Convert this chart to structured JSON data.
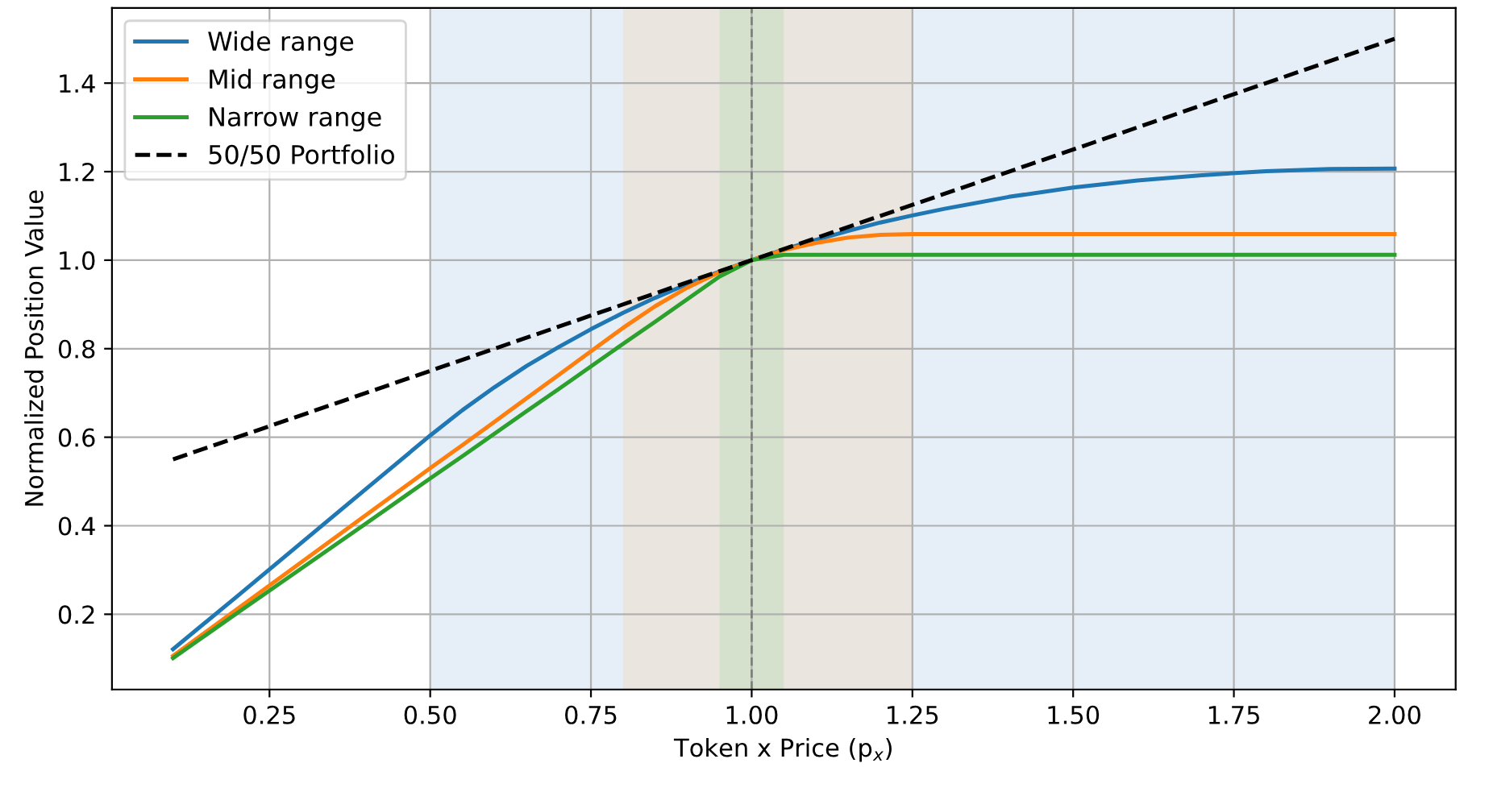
{
  "chart_data": {
    "type": "line",
    "xlabel": "Token x Price (p$_{x}$)",
    "ylabel": "Normalized Position Value",
    "x": [
      0.1,
      0.2,
      0.3,
      0.4,
      0.5,
      0.55,
      0.6,
      0.65,
      0.7,
      0.75,
      0.8,
      0.85,
      0.9,
      0.95,
      1.0,
      1.05,
      1.1,
      1.15,
      1.2,
      1.25,
      1.3,
      1.4,
      1.5,
      1.6,
      1.7,
      1.8,
      1.9,
      2.0
    ],
    "series": [
      {
        "name": "Wide range",
        "color": "#1f77b4",
        "values": [
          0.121,
          0.241,
          0.362,
          0.483,
          0.604,
          0.661,
          0.713,
          0.761,
          0.804,
          0.844,
          0.881,
          0.915,
          0.946,
          0.974,
          1.0,
          1.024,
          1.046,
          1.066,
          1.085,
          1.101,
          1.116,
          1.143,
          1.164,
          1.18,
          1.192,
          1.201,
          1.206,
          1.207
        ]
      },
      {
        "name": "Mid range",
        "color": "#ff7f0e",
        "values": [
          0.106,
          0.212,
          0.318,
          0.424,
          0.53,
          0.582,
          0.635,
          0.688,
          0.741,
          0.794,
          0.847,
          0.896,
          0.938,
          0.973,
          1.0,
          1.023,
          1.039,
          1.051,
          1.057,
          1.059,
          1.059,
          1.059,
          1.059,
          1.059,
          1.059,
          1.059,
          1.059,
          1.059
        ]
      },
      {
        "name": "Narrow range",
        "color": "#2ca02c",
        "values": [
          0.101,
          0.203,
          0.304,
          0.405,
          0.507,
          0.557,
          0.608,
          0.659,
          0.709,
          0.76,
          0.811,
          0.861,
          0.912,
          0.963,
          1.0,
          1.012,
          1.012,
          1.012,
          1.012,
          1.012,
          1.012,
          1.012,
          1.012,
          1.012,
          1.012,
          1.012,
          1.012,
          1.012
        ]
      },
      {
        "name": "50/50 Portfolio",
        "color": "#000000",
        "line_style": "dashed",
        "x": [
          0.1,
          2.0
        ],
        "values": [
          0.55,
          1.5
        ]
      }
    ],
    "bands": [
      {
        "axis": "x",
        "from": 0.5,
        "to": 2.0,
        "color": "#e6eef7"
      },
      {
        "axis": "x",
        "from": 0.8,
        "to": 1.25,
        "color": "#ebe5df"
      },
      {
        "axis": "x",
        "from": 0.95,
        "to": 1.05,
        "color": "#d6e1cd"
      }
    ],
    "ref_lines": [
      {
        "axis": "x",
        "value": 1.0,
        "color": "#808080",
        "line_style": "dashed"
      }
    ],
    "xlim": [
      0.005,
      2.095
    ],
    "ylim": [
      0.03,
      1.57
    ],
    "xticks": [
      {
        "value": 0.25,
        "label": "0.25"
      },
      {
        "value": 0.5,
        "label": "0.50"
      },
      {
        "value": 0.75,
        "label": "0.75"
      },
      {
        "value": 1.0,
        "label": "1.00"
      },
      {
        "value": 1.25,
        "label": "1.25"
      },
      {
        "value": 1.5,
        "label": "1.50"
      },
      {
        "value": 1.75,
        "label": "1.75"
      },
      {
        "value": 2.0,
        "label": "2.00"
      }
    ],
    "yticks": [
      0.2,
      0.4,
      0.6,
      0.8,
      {
        "value": 1.0,
        "label": "1.0"
      },
      1.2,
      1.4
    ],
    "grid": true,
    "legend": "top left",
    "line_style": "solid",
    "marker": "none"
  }
}
